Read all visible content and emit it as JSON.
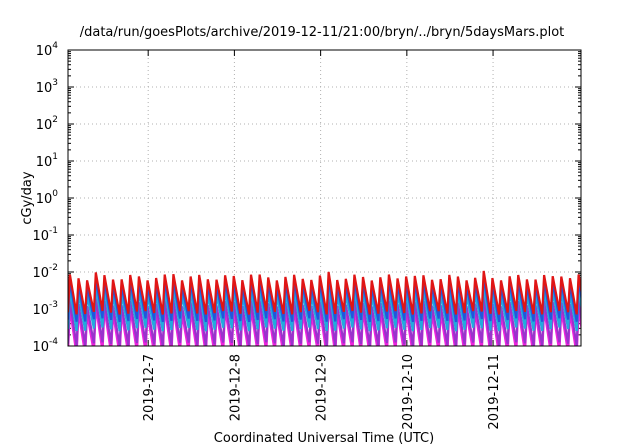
{
  "chart_data": {
    "type": "line",
    "title": "/data/run/goesPlots/archive/2019-12-11/21:00/bryn/../bryn/5daysMars.plot",
    "xlabel": "Coordinated Universal Time (UTC)",
    "ylabel": "cGy/day",
    "yscale": "log",
    "ylim_exponents": [
      -4,
      4
    ],
    "y_ticks": [
      {
        "base": "10",
        "exp": "4"
      },
      {
        "base": "10",
        "exp": "3"
      },
      {
        "base": "10",
        "exp": "2"
      },
      {
        "base": "10",
        "exp": "1"
      },
      {
        "base": "10",
        "exp": "0"
      },
      {
        "base": "10",
        "exp": "-1"
      },
      {
        "base": "10",
        "exp": "-2"
      },
      {
        "base": "10",
        "exp": "-3"
      },
      {
        "base": "10",
        "exp": "-4"
      }
    ],
    "xlim_days": [
      0,
      5.95
    ],
    "x_ticks": [
      {
        "label": "2019-12-7",
        "day": 0.93
      },
      {
        "label": "2019-12-8",
        "day": 1.93
      },
      {
        "label": "2019-12-9",
        "day": 2.93
      },
      {
        "label": "2019-12-10",
        "day": 3.93
      },
      {
        "label": "2019-12-11",
        "day": 4.93
      }
    ],
    "grid": true,
    "sawtooth_period_days": 0.1,
    "series": [
      {
        "color": "#e01515",
        "peak_log": -2.15,
        "trough_log": -3.1
      },
      {
        "color": "#2255dd",
        "peak_log": -2.3,
        "trough_log": -3.3
      },
      {
        "color": "#22aadd",
        "peak_log": -2.55,
        "trough_log": -3.55
      },
      {
        "color": "#9933cc",
        "peak_log": -2.85,
        "trough_log": -3.95
      },
      {
        "color": "#ee22dd",
        "peak_log": -3.05,
        "trough_log": -4.2
      },
      {
        "color": "#777777",
        "peak_log": -2.95,
        "trough_log": -4.05
      }
    ]
  }
}
